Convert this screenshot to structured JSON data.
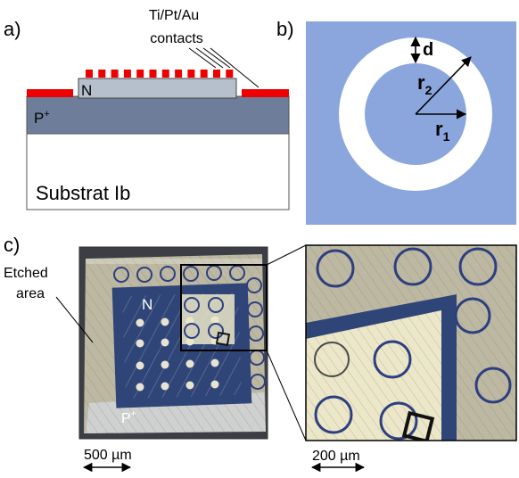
{
  "panel_a": {
    "label": "a)",
    "contacts_label_line1": "Ti/Pt/Au",
    "contacts_label_line2": "contacts",
    "n_label": "N",
    "p_label_base": "P",
    "p_label_sup": "+",
    "substrate_label": "Substrat Ib"
  },
  "panel_b": {
    "label": "b)",
    "d_label": "d",
    "r2_base": "r",
    "r2_sub": "2",
    "r1_base": "r",
    "r1_sub": "1"
  },
  "panel_c": {
    "label": "c)",
    "etched_line1": "Etched",
    "etched_line2": "area",
    "n_label": "N",
    "p_label_base": "P",
    "p_label_sup": "+",
    "scale_left": "500 µm",
    "scale_right": "200 µm"
  },
  "colors": {
    "contact_red": "#ee0000",
    "p_layer": "#6e7e9a",
    "n_layer": "#b6c0cc",
    "ring_blue": "#8aa6dc",
    "mesa_blue": "#2f4577",
    "etched_bg": "#bdb8a2",
    "p_plus_zone": "#cfd0d0"
  }
}
